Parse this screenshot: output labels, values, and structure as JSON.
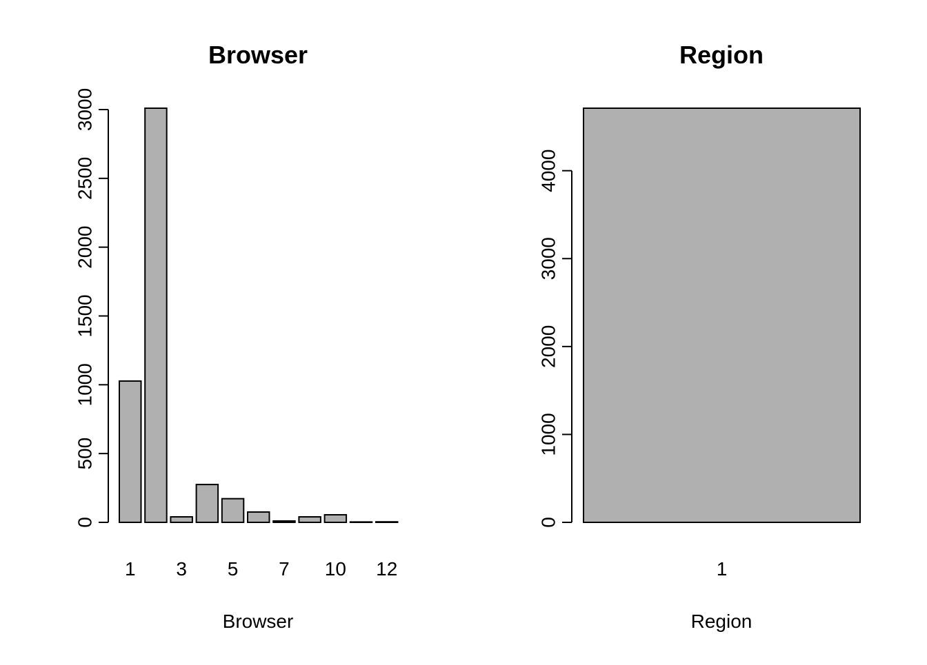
{
  "colors": {
    "bar_fill": "#b0b0b0",
    "bar_stroke": "#000000",
    "axis": "#000000",
    "background": "#ffffff"
  },
  "chart_data": [
    {
      "type": "bar",
      "title": "Browser",
      "xlabel": "Browser",
      "ylabel": "",
      "categories": [
        "1",
        "2",
        "3",
        "4",
        "5",
        "6",
        "7",
        "8",
        "10",
        "11",
        "12"
      ],
      "x_tick_labels": [
        "1",
        "3",
        "5",
        "7",
        "10",
        "12"
      ],
      "values": [
        1027,
        3010,
        40,
        275,
        172,
        75,
        10,
        40,
        55,
        3,
        4
      ],
      "ylim": [
        0,
        3010
      ],
      "y_ticks": [
        0,
        500,
        1000,
        1500,
        2000,
        2500,
        3000
      ],
      "grid": false,
      "legend": "none"
    },
    {
      "type": "bar",
      "title": "Region",
      "xlabel": "Region",
      "ylabel": "",
      "categories": [
        "1"
      ],
      "x_tick_labels": [
        "1"
      ],
      "values": [
        4711
      ],
      "ylim": [
        0,
        4711
      ],
      "y_ticks": [
        0,
        1000,
        2000,
        3000,
        4000
      ],
      "grid": false,
      "legend": "none"
    }
  ]
}
